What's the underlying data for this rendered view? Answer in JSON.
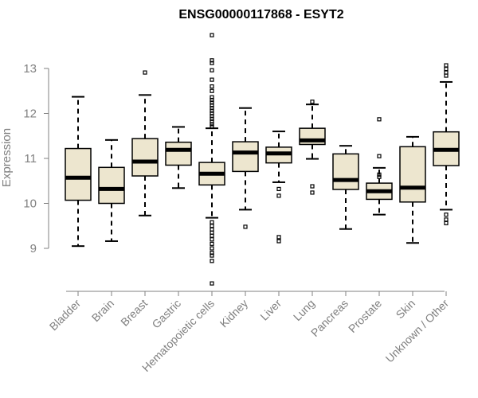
{
  "chart_data": {
    "type": "boxplot",
    "title": "ENSG00000117868 - ESYT2",
    "ylabel": "Expression",
    "xlabel": "",
    "ylim": [
      8.1,
      13.8
    ],
    "yticks": [
      9,
      10,
      11,
      12,
      13
    ],
    "box_fill_color": "#ede6cf",
    "axis_color": "#808080",
    "groups": [
      {
        "name": "Bladder",
        "whisker_low": 9.05,
        "q1": 10.07,
        "median": 10.57,
        "q3": 11.22,
        "whisker_high": 12.37,
        "outliers": []
      },
      {
        "name": "Brain",
        "whisker_low": 9.16,
        "q1": 10.0,
        "median": 10.32,
        "q3": 10.8,
        "whisker_high": 11.41,
        "outliers": []
      },
      {
        "name": "Breast",
        "whisker_low": 9.73,
        "q1": 10.61,
        "median": 10.93,
        "q3": 11.44,
        "whisker_high": 12.41,
        "outliers": [
          12.91
        ]
      },
      {
        "name": "Gastric",
        "whisker_low": 10.34,
        "q1": 10.85,
        "median": 11.19,
        "q3": 11.36,
        "whisker_high": 11.7,
        "outliers": []
      },
      {
        "name": "Hematopoietic cells",
        "whisker_low": 9.68,
        "q1": 10.41,
        "median": 10.66,
        "q3": 10.91,
        "whisker_high": 11.67,
        "outliers": [
          13.74,
          13.18,
          13.12,
          12.96,
          12.75,
          12.6,
          12.5,
          12.36,
          12.3,
          12.24,
          12.18,
          12.12,
          12.06,
          12.0,
          11.94,
          11.88,
          11.82,
          11.76,
          11.71,
          9.58,
          9.5,
          9.42,
          9.35,
          9.28,
          9.2,
          9.1,
          9.0,
          8.9,
          8.84,
          8.72,
          8.22
        ]
      },
      {
        "name": "Kidney",
        "whisker_low": 9.86,
        "q1": 10.71,
        "median": 11.13,
        "q3": 11.37,
        "whisker_high": 12.12,
        "outliers": [
          9.48
        ]
      },
      {
        "name": "Liver",
        "whisker_low": 10.47,
        "q1": 10.9,
        "median": 11.11,
        "q3": 11.25,
        "whisker_high": 11.6,
        "outliers": [
          10.32,
          10.17,
          9.25,
          9.16
        ]
      },
      {
        "name": "Lung",
        "whisker_low": 10.99,
        "q1": 11.31,
        "median": 11.4,
        "q3": 11.67,
        "whisker_high": 12.2,
        "outliers": [
          12.26,
          10.38,
          10.24
        ]
      },
      {
        "name": "Pancreas",
        "whisker_low": 9.43,
        "q1": 10.31,
        "median": 10.52,
        "q3": 11.1,
        "whisker_high": 11.28,
        "outliers": []
      },
      {
        "name": "Prostate",
        "whisker_low": 9.75,
        "q1": 10.09,
        "median": 10.27,
        "q3": 10.45,
        "whisker_high": 10.79,
        "outliers": [
          11.87,
          11.05,
          10.64,
          10.59
        ]
      },
      {
        "name": "Skin",
        "whisker_low": 9.12,
        "q1": 10.03,
        "median": 10.35,
        "q3": 11.26,
        "whisker_high": 11.48,
        "outliers": []
      },
      {
        "name": "Unknown / Other",
        "whisker_low": 9.86,
        "q1": 10.84,
        "median": 11.19,
        "q3": 11.59,
        "whisker_high": 12.7,
        "outliers": [
          13.07,
          12.99,
          12.91,
          12.84,
          9.75,
          9.64,
          9.56
        ]
      }
    ]
  }
}
